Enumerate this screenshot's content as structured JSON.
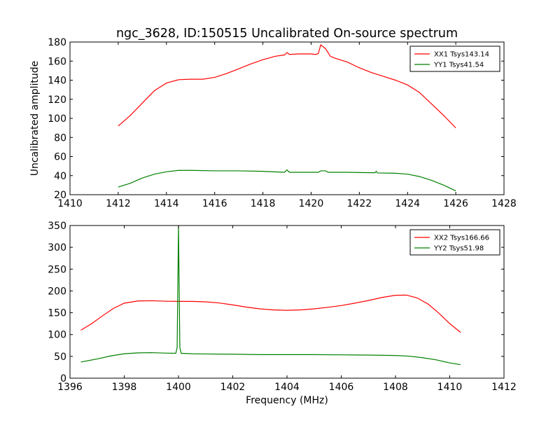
{
  "chart_data": [
    {
      "type": "line",
      "title": "ngc_3628, ID:150515 Uncalibrated On-source spectrum",
      "xlabel": "",
      "ylabel": "Uncalibrated amplitude",
      "xlim": [
        1410,
        1428
      ],
      "ylim": [
        20,
        180
      ],
      "xticks": [
        1410,
        1412,
        1414,
        1416,
        1418,
        1420,
        1422,
        1424,
        1426,
        1428
      ],
      "yticks": [
        20,
        40,
        60,
        80,
        100,
        120,
        140,
        160,
        180
      ],
      "legend_position": "top-right",
      "series": [
        {
          "name": "XX1 Tsys143.14",
          "color": "#ff0000",
          "points": [
            [
              1412,
              92
            ],
            [
              1412.5,
              103
            ],
            [
              1413,
              116
            ],
            [
              1413.5,
              129
            ],
            [
              1414,
              137
            ],
            [
              1414.5,
              140.5
            ],
            [
              1415,
              141
            ],
            [
              1415.5,
              141
            ],
            [
              1416,
              143
            ],
            [
              1416.5,
              147
            ],
            [
              1417,
              152
            ],
            [
              1417.5,
              157
            ],
            [
              1418,
              161.5
            ],
            [
              1418.5,
              165
            ],
            [
              1418.9,
              166.5
            ],
            [
              1419.0,
              169
            ],
            [
              1419.1,
              167
            ],
            [
              1419.5,
              167.5
            ],
            [
              1420,
              167.5
            ],
            [
              1420.2,
              167
            ],
            [
              1420.3,
              168
            ],
            [
              1420.4,
              177
            ],
            [
              1420.6,
              173
            ],
            [
              1420.8,
              165
            ],
            [
              1421,
              163
            ],
            [
              1421.5,
              159
            ],
            [
              1422,
              153
            ],
            [
              1422.5,
              148
            ],
            [
              1423,
              144
            ],
            [
              1423.5,
              140
            ],
            [
              1424,
              135
            ],
            [
              1424.5,
              127
            ],
            [
              1425,
              115
            ],
            [
              1425.5,
              103
            ],
            [
              1426,
              90
            ]
          ]
        },
        {
          "name": "YY1 Tsys41.54",
          "color": "#008000",
          "points": [
            [
              1412,
              28
            ],
            [
              1412.5,
              32
            ],
            [
              1413,
              37.5
            ],
            [
              1413.5,
              41.5
            ],
            [
              1414,
              44
            ],
            [
              1414.5,
              45.5
            ],
            [
              1415,
              45.5
            ],
            [
              1416,
              45
            ],
            [
              1417,
              45
            ],
            [
              1418,
              44.5
            ],
            [
              1418.9,
              43.5
            ],
            [
              1419.0,
              46
            ],
            [
              1419.1,
              43.5
            ],
            [
              1420,
              43.5
            ],
            [
              1420.3,
              43.5
            ],
            [
              1420.4,
              45
            ],
            [
              1420.6,
              45
            ],
            [
              1420.7,
              43.5
            ],
            [
              1421.5,
              43.5
            ],
            [
              1422.5,
              43
            ],
            [
              1422.65,
              43
            ],
            [
              1422.7,
              44.5
            ],
            [
              1422.75,
              42.8
            ],
            [
              1423.5,
              42.5
            ],
            [
              1424,
              41.5
            ],
            [
              1424.5,
              39
            ],
            [
              1425,
              35
            ],
            [
              1425.5,
              30
            ],
            [
              1426,
              24
            ]
          ]
        }
      ]
    },
    {
      "type": "line",
      "title": "",
      "xlabel": "Frequency (MHz)",
      "ylabel": "",
      "xlim": [
        1396,
        1412
      ],
      "ylim": [
        0,
        350
      ],
      "xticks": [
        1396,
        1398,
        1400,
        1402,
        1404,
        1406,
        1408,
        1410,
        1412
      ],
      "yticks": [
        0,
        50,
        100,
        150,
        200,
        250,
        300,
        350
      ],
      "legend_position": "top-right",
      "series": [
        {
          "name": "XX2 Tsys166.66",
          "color": "#ff0000",
          "points": [
            [
              1396.4,
              110
            ],
            [
              1396.8,
              125
            ],
            [
              1397.2,
              143
            ],
            [
              1397.6,
              160
            ],
            [
              1398,
              172
            ],
            [
              1398.5,
              177
            ],
            [
              1399,
              177.5
            ],
            [
              1399.5,
              176.5
            ],
            [
              1400,
              176
            ],
            [
              1400.5,
              176
            ],
            [
              1401,
              175
            ],
            [
              1401.5,
              172.5
            ],
            [
              1402,
              168
            ],
            [
              1402.5,
              163
            ],
            [
              1403,
              159
            ],
            [
              1403.5,
              156.5
            ],
            [
              1404,
              155.5
            ],
            [
              1404.5,
              156.5
            ],
            [
              1405,
              159
            ],
            [
              1405.5,
              162.5
            ],
            [
              1406,
              166.5
            ],
            [
              1406.5,
              172
            ],
            [
              1407,
              178
            ],
            [
              1407.5,
              185
            ],
            [
              1408,
              190
            ],
            [
              1408.4,
              190.5
            ],
            [
              1408.8,
              184
            ],
            [
              1409.2,
              170
            ],
            [
              1409.6,
              149
            ],
            [
              1410,
              125
            ],
            [
              1410.4,
              105
            ]
          ]
        },
        {
          "name": "YY2 Tsys51.98",
          "color": "#008000",
          "points": [
            [
              1396.4,
              37
            ],
            [
              1397,
              44
            ],
            [
              1397.5,
              51
            ],
            [
              1398,
              56
            ],
            [
              1398.5,
              58
            ],
            [
              1399,
              58.5
            ],
            [
              1399.5,
              57.5
            ],
            [
              1399.9,
              57
            ],
            [
              1399.95,
              70
            ],
            [
              1400.0,
              350
            ],
            [
              1400.05,
              70
            ],
            [
              1400.1,
              57
            ],
            [
              1400.5,
              56
            ],
            [
              1401,
              55.5
            ],
            [
              1402,
              55
            ],
            [
              1403,
              54
            ],
            [
              1404,
              54
            ],
            [
              1405,
              54
            ],
            [
              1406,
              53.5
            ],
            [
              1407,
              53
            ],
            [
              1408,
              52
            ],
            [
              1408.5,
              50.5
            ],
            [
              1409,
              47
            ],
            [
              1409.5,
              42
            ],
            [
              1410,
              35
            ],
            [
              1410.4,
              31
            ]
          ]
        }
      ]
    }
  ]
}
